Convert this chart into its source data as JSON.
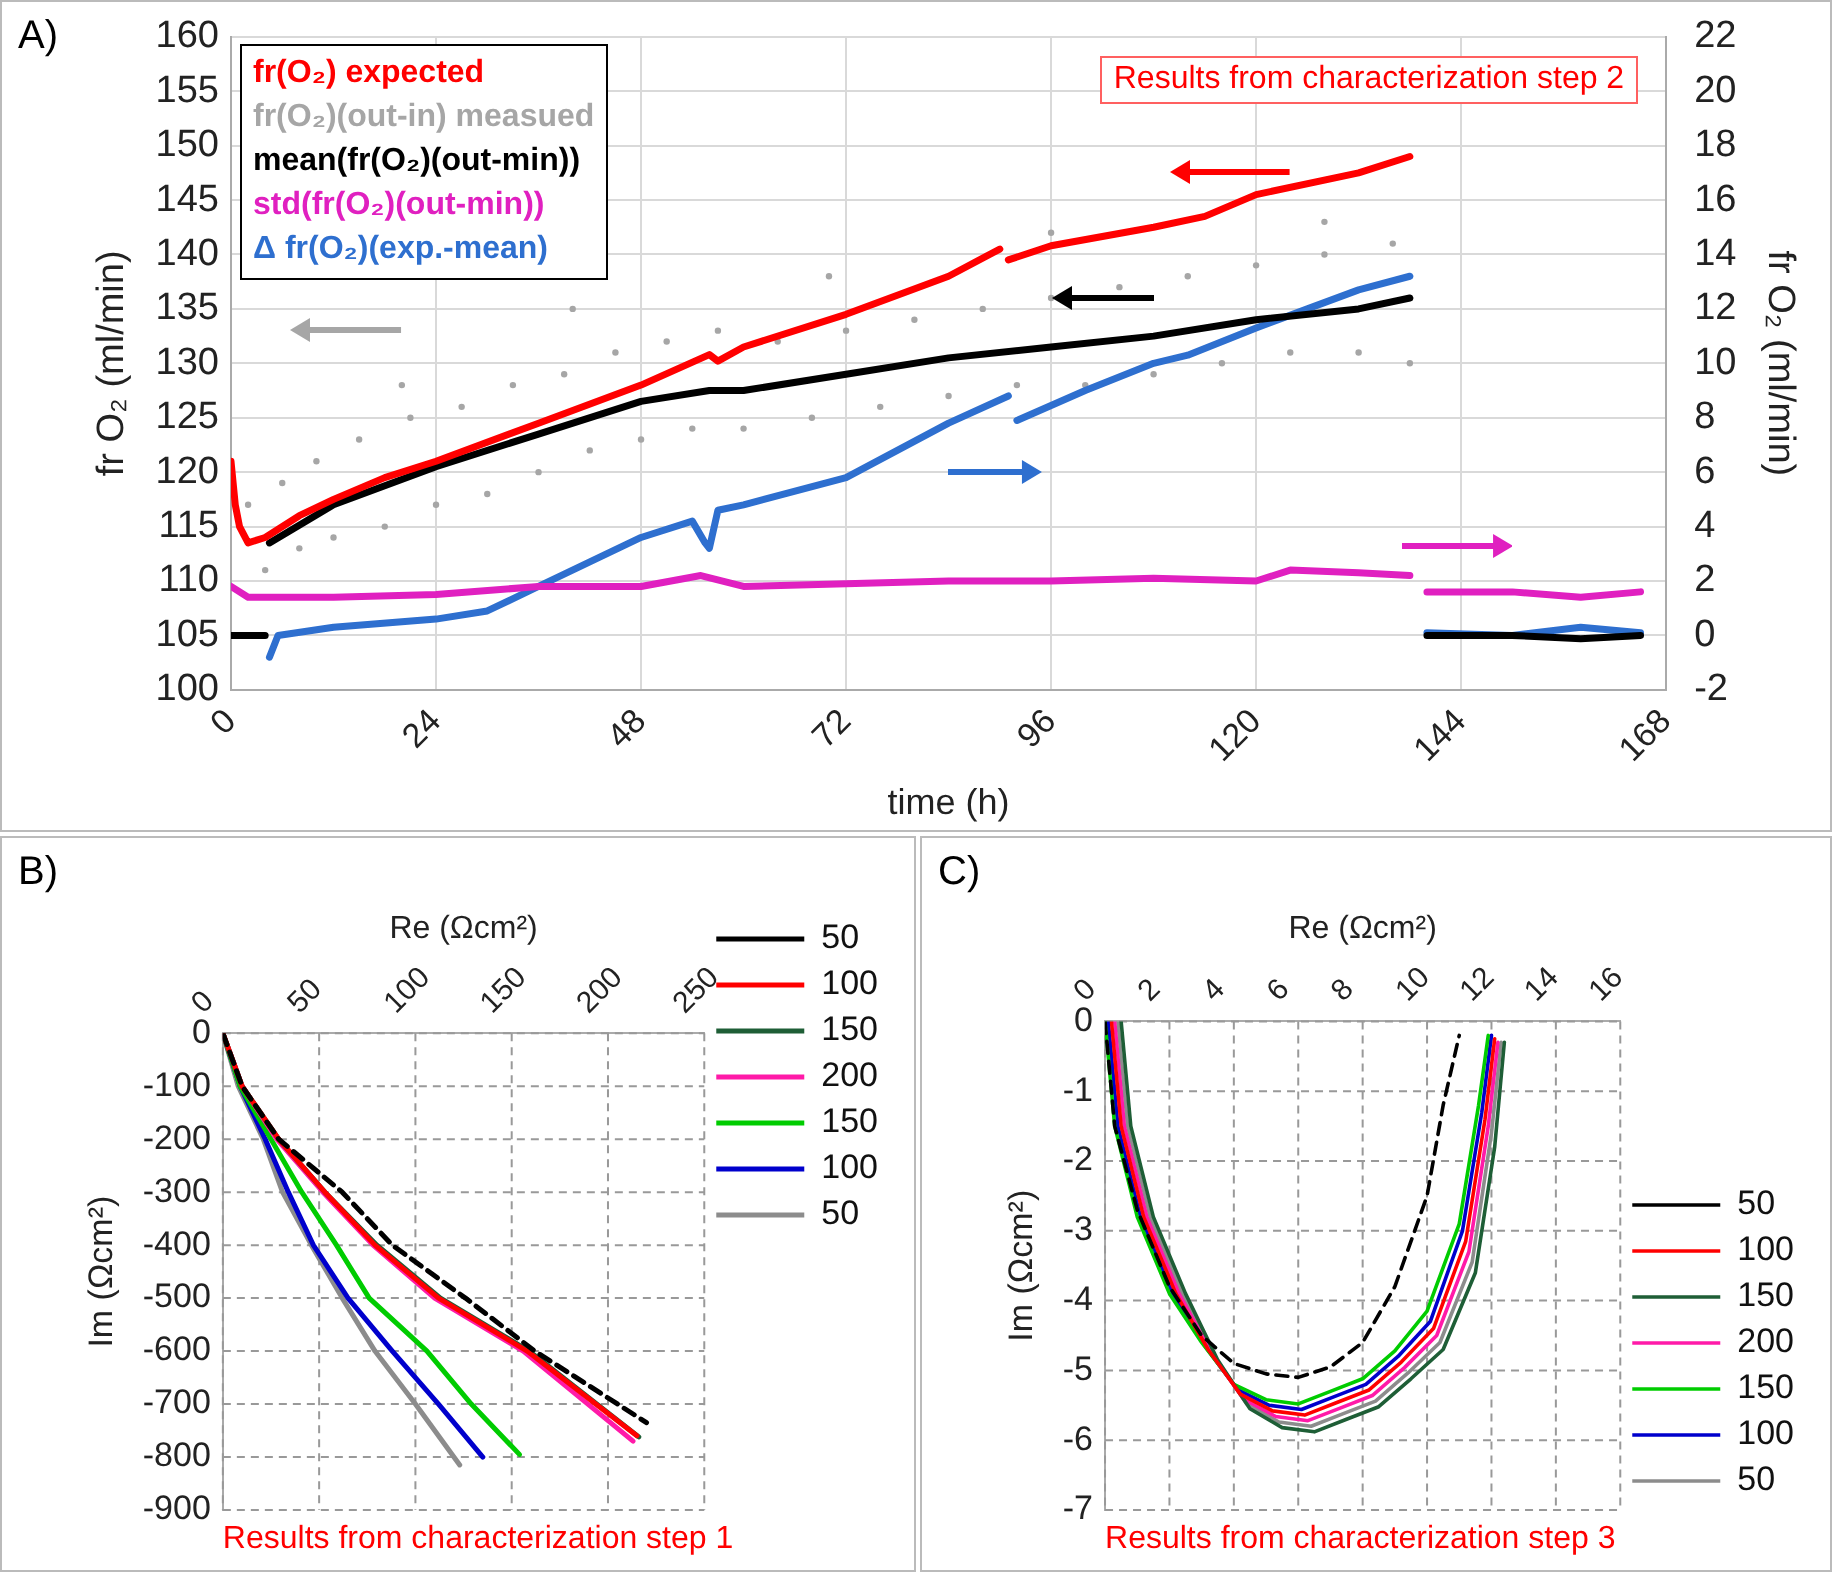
{
  "chart_data": [
    {
      "type": "line",
      "annotations": [
        "A)",
        "Results from characterization step 2"
      ],
      "xlabel": "time (h)",
      "ylabel": "fr O₂ (ml/min)",
      "y2label": "fr O₂ (ml/min)",
      "xlim": [
        0,
        168
      ],
      "xticks": [
        0,
        24,
        48,
        72,
        96,
        120,
        144,
        168
      ],
      "ylim": [
        100,
        160
      ],
      "yticks": [
        100,
        105,
        110,
        115,
        120,
        125,
        130,
        135,
        140,
        145,
        150,
        155,
        160
      ],
      "y2lim": [
        -2,
        22
      ],
      "y2ticks": [
        -2,
        0,
        2,
        4,
        6,
        8,
        10,
        12,
        14,
        16,
        18,
        20,
        22
      ],
      "grid": true,
      "legend": "top left",
      "series": [
        {
          "name": "fr(O₂) expected",
          "color": "#ff0000",
          "x": [
            0,
            0.5,
            1,
            2,
            4,
            8,
            12,
            18,
            24,
            36,
            48,
            56,
            57,
            60,
            72,
            84,
            90,
            90.5,
            91,
            96,
            108,
            114,
            120,
            132,
            138
          ],
          "values": [
            121,
            117,
            115,
            113.5,
            114,
            116,
            117.5,
            119.5,
            121,
            124.5,
            128,
            130.8,
            130.2,
            131.5,
            134.5,
            138,
            140.5,
            null,
            139.5,
            140.8,
            142.5,
            143.5,
            145.5,
            147.5,
            149
          ]
        },
        {
          "name": "fr(O₂)(out-in) measued",
          "color": "#a6a6a6",
          "type": "scatter",
          "marker": "circle",
          "x": [
            2,
            4,
            6,
            8,
            10,
            12,
            15,
            18,
            21,
            24,
            27,
            30,
            33,
            36,
            39,
            42,
            45,
            48,
            51,
            54,
            57,
            60,
            64,
            68,
            72,
            76,
            80,
            84,
            88,
            92,
            96,
            100,
            104,
            108,
            112,
            116,
            120,
            124,
            128,
            132,
            136,
            138,
            96,
            70,
            40,
            20,
            128
          ],
          "values": [
            117,
            111,
            119,
            113,
            121,
            114,
            123,
            115,
            125,
            117,
            126,
            118,
            128,
            120,
            129,
            122,
            131,
            123,
            132,
            124,
            133,
            124,
            132,
            125,
            133,
            126,
            134,
            127,
            135,
            128,
            136,
            128,
            137,
            129,
            138,
            130,
            139,
            131,
            140,
            131,
            141,
            130,
            142,
            138,
            135,
            128,
            143
          ]
        },
        {
          "name": "mean(fr(O₂)(out-min))",
          "color": "#000000",
          "x": [
            0,
            4,
            4.2,
            4.5,
            12,
            24,
            36,
            48,
            56,
            60,
            72,
            84,
            96,
            108,
            120,
            132,
            138,
            139,
            140,
            150,
            158,
            165
          ],
          "values": [
            105,
            105,
            null,
            113.5,
            117,
            120.5,
            123.5,
            126.5,
            127.5,
            127.5,
            129,
            130.5,
            131.5,
            132.5,
            134,
            135,
            136,
            null,
            105,
            105,
            104.7,
            105
          ]
        },
        {
          "name": "std(fr(O₂)(out-min))",
          "color": "#e020c0",
          "axis": "y2",
          "x": [
            0,
            2,
            12,
            24,
            36,
            48,
            55,
            60,
            72,
            84,
            96,
            108,
            120,
            124,
            132,
            138,
            139,
            140,
            150,
            158,
            165
          ],
          "values": [
            1.8,
            1.4,
            1.4,
            1.5,
            1.8,
            1.8,
            2.2,
            1.8,
            1.9,
            2.0,
            2.0,
            2.1,
            2.0,
            2.4,
            2.3,
            2.2,
            null,
            1.6,
            1.6,
            1.4,
            1.6
          ]
        },
        {
          "name": "Δ fr(O₂)(exp.-mean)",
          "color": "#2e6fcf",
          "axis": "y2",
          "x": [
            4.5,
            5.5,
            12,
            24,
            30,
            36,
            42,
            48,
            54,
            55.5,
            56,
            57,
            60,
            72,
            84,
            91,
            91.5,
            92,
            100,
            108,
            112,
            120,
            126,
            132,
            138,
            139,
            140,
            150,
            158,
            165
          ],
          "values": [
            -0.8,
            0,
            0.3,
            0.6,
            0.9,
            1.8,
            2.7,
            3.6,
            4.2,
            3.4,
            3.2,
            4.6,
            4.8,
            5.8,
            7.8,
            8.8,
            null,
            7.9,
            9,
            10,
            10.3,
            11.3,
            12,
            12.7,
            13.2,
            null,
            0.1,
            0,
            0.3,
            0.1
          ]
        }
      ]
    },
    {
      "type": "line",
      "annotations": [
        "B)",
        "Results from characterization step 1"
      ],
      "xlabel": "Re (Ωcm²)",
      "ylabel": "Im (Ωcm²)",
      "xlim": [
        0,
        250
      ],
      "xticks": [
        0,
        50,
        100,
        150,
        200,
        250
      ],
      "ylim": [
        -900,
        0
      ],
      "yticks": [
        -900,
        -800,
        -700,
        -600,
        -500,
        -400,
        -300,
        -200,
        -100,
        0
      ],
      "grid": true,
      "legend": "top right",
      "series": [
        {
          "name": "50",
          "color": "#000000",
          "line_style": "dashed",
          "x": [
            0,
            10,
            29,
            62,
            88,
            126,
            162,
            220
          ],
          "values": [
            0,
            -100,
            -200,
            -300,
            -400,
            -500,
            -600,
            -735
          ]
        },
        {
          "name": "100",
          "color": "#ff0000",
          "x": [
            0,
            10,
            29,
            53,
            79,
            112,
            158,
            215
          ],
          "values": [
            0,
            -100,
            -200,
            -300,
            -400,
            -500,
            -600,
            -760
          ]
        },
        {
          "name": "150",
          "color": "#1e5e36",
          "x": [
            0,
            10,
            29,
            53,
            80,
            113,
            159,
            216
          ],
          "values": [
            0,
            -100,
            -200,
            -300,
            -400,
            -500,
            -600,
            -762
          ]
        },
        {
          "name": "200",
          "color": "#ff1aa8",
          "x": [
            0,
            10,
            28,
            52,
            78,
            110,
            156,
            213
          ],
          "values": [
            0,
            -100,
            -200,
            -300,
            -400,
            -500,
            -600,
            -770
          ]
        },
        {
          "name": "150",
          "color": "#00cc00",
          "x": [
            0,
            9,
            25,
            41,
            59,
            76,
            106,
            129,
            154
          ],
          "values": [
            0,
            -100,
            -200,
            -300,
            -400,
            -500,
            -600,
            -700,
            -795
          ]
        },
        {
          "name": "100",
          "color": "#0000cc",
          "x": [
            0,
            9,
            22,
            34,
            47,
            65,
            88,
            112,
            135
          ],
          "values": [
            0,
            -100,
            -200,
            -300,
            -400,
            -500,
            -600,
            -700,
            -800
          ]
        },
        {
          "name": "50",
          "color": "#8c8c8c",
          "x": [
            0,
            8,
            21,
            31,
            46,
            62,
            79,
            100,
            123
          ],
          "values": [
            0,
            -100,
            -200,
            -300,
            -400,
            -500,
            -600,
            -700,
            -815
          ]
        }
      ]
    },
    {
      "type": "line",
      "annotations": [
        "C)",
        "Results from characterization step 3"
      ],
      "xlabel": "Re (Ωcm²)",
      "ylabel": "Im (Ωcm²)",
      "xlim": [
        0,
        16
      ],
      "xticks": [
        0,
        2,
        4,
        6,
        8,
        10,
        12,
        14,
        16
      ],
      "ylim": [
        -7,
        0
      ],
      "yticks": [
        -7,
        -6,
        -5,
        -4,
        -3,
        -2,
        -1,
        0
      ],
      "grid": true,
      "legend": "bottom right",
      "series": [
        {
          "name": "50",
          "color": "#000000",
          "line_style": "dashed",
          "x": [
            0,
            0.3,
            1,
            2,
            3,
            4,
            5,
            6,
            7,
            8,
            9,
            10,
            10.5,
            11
          ],
          "values": [
            0,
            -1.5,
            -2.7,
            -3.8,
            -4.5,
            -4.9,
            -5.05,
            -5.1,
            -4.95,
            -4.6,
            -3.8,
            -2.5,
            -1.2,
            -0.2
          ]
        },
        {
          "name": "100",
          "color": "#ff0000",
          "x": [
            0.2,
            0.5,
            1.2,
            2.2,
            3.2,
            4.2,
            5.2,
            6.2,
            7.2,
            8.2,
            9.2,
            10.2,
            11.2,
            11.8,
            12.1
          ],
          "values": [
            0,
            -1.5,
            -2.8,
            -3.9,
            -4.7,
            -5.34,
            -5.58,
            -5.64,
            -5.46,
            -5.28,
            -4.88,
            -4.4,
            -3.15,
            -1.4,
            -0.25
          ]
        },
        {
          "name": "150",
          "color": "#1e5e36",
          "x": [
            0.5,
            0.8,
            1.5,
            2.5,
            3.5,
            4.5,
            5.5,
            6.5,
            7.5,
            8.5,
            9.5,
            10.5,
            11.5,
            12.1,
            12.4
          ],
          "values": [
            0,
            -1.5,
            -2.8,
            -3.9,
            -4.85,
            -5.55,
            -5.82,
            -5.88,
            -5.7,
            -5.52,
            -5.12,
            -4.7,
            -3.6,
            -1.8,
            -0.3
          ]
        },
        {
          "name": "200",
          "color": "#ff1aa8",
          "x": [
            0.3,
            0.6,
            1.3,
            2.3,
            3.3,
            4.3,
            5.3,
            6.3,
            7.3,
            8.3,
            9.3,
            10.3,
            11.3,
            11.9,
            12.2
          ],
          "values": [
            0,
            -1.5,
            -2.8,
            -3.9,
            -4.75,
            -5.41,
            -5.66,
            -5.72,
            -5.54,
            -5.36,
            -4.96,
            -4.5,
            -3.3,
            -1.5,
            -0.3
          ]
        },
        {
          "name": "150",
          "color": "#00cc00",
          "x": [
            0,
            0.3,
            1,
            2,
            3,
            4,
            5,
            6,
            7,
            8,
            9,
            10,
            11,
            11.6,
            11.9
          ],
          "values": [
            0,
            -1.5,
            -2.8,
            -3.9,
            -4.6,
            -5.2,
            -5.42,
            -5.48,
            -5.3,
            -5.12,
            -4.72,
            -4.15,
            -2.9,
            -1.2,
            -0.2
          ]
        },
        {
          "name": "100",
          "color": "#0000cc",
          "x": [
            0.1,
            0.4,
            1.1,
            2.1,
            3.1,
            4.1,
            5.1,
            6.1,
            7.1,
            8.1,
            9.1,
            10.1,
            11.1,
            11.7,
            12
          ],
          "values": [
            0,
            -1.5,
            -2.8,
            -3.9,
            -4.65,
            -5.27,
            -5.5,
            -5.56,
            -5.38,
            -5.2,
            -4.8,
            -4.3,
            -3.0,
            -1.3,
            -0.2
          ]
        },
        {
          "name": "50",
          "color": "#8c8c8c",
          "x": [
            0.4,
            0.7,
            1.4,
            2.4,
            3.4,
            4.4,
            5.4,
            6.4,
            7.4,
            8.4,
            9.4,
            10.4,
            11.4,
            12,
            12.3
          ],
          "values": [
            0,
            -1.5,
            -2.8,
            -3.9,
            -4.8,
            -5.48,
            -5.74,
            -5.8,
            -5.62,
            -5.44,
            -5.04,
            -4.6,
            -3.45,
            -1.6,
            -0.3
          ]
        }
      ]
    }
  ]
}
